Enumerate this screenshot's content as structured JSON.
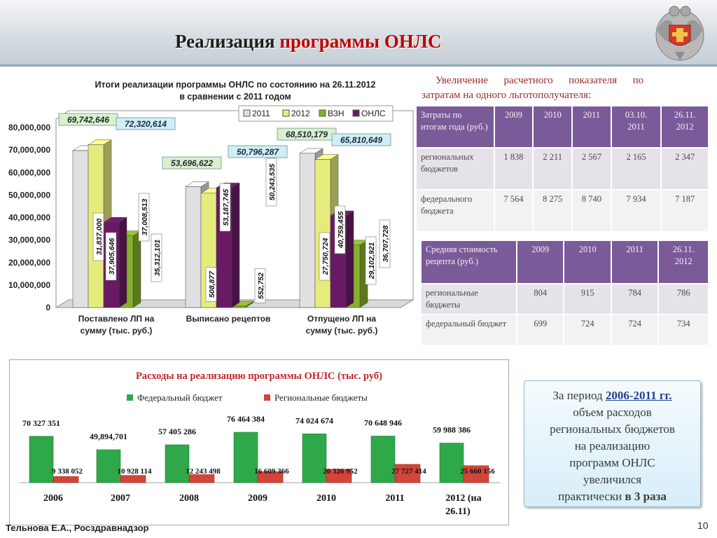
{
  "header": {
    "title_part1": "Реализация",
    "title_part2": "программы ОНЛС"
  },
  "chart1": {
    "title_line1": "Итоги реализации программы ОНЛС по состоянию на  26.11.2012",
    "title_line2": "в сравнении с 2011 годом",
    "legend": [
      "2011",
      "2012",
      "ВЗН",
      "ОНЛС"
    ],
    "colors": [
      "#e0e0e0",
      "#e6ec7c",
      "#86b12c",
      "#6a1a64"
    ],
    "yticks": [
      "80,000,000",
      "70,000,000",
      "60,000,000",
      "50,000,000",
      "40,000,000",
      "30,000,000",
      "20,000,000",
      "10,000,000",
      "0"
    ],
    "categories": [
      "Поставлено ЛП на",
      "сумму (тыс. руб.)",
      "Выписано рецептов",
      "Отпущено ЛП на",
      "сумму (тыс. руб.)"
    ],
    "callouts": [
      "69,742,646",
      "72,320,614",
      "53,696,622",
      "50,796,287",
      "68,510,179",
      "65,810,649"
    ],
    "vlabels": [
      "31,837,000",
      "37,905,646",
      "37,008,513",
      "35,312,101",
      "508,877",
      "53,187,745",
      "552,752",
      "50,243,535",
      "27,750,724",
      "40,759,455",
      "29,102,921",
      "36,707,728"
    ]
  },
  "chart_data": [
    {
      "type": "bar",
      "title": "Итоги реализации программы ОНЛС по состоянию на  26.11.2012 в сравнении с 2011 годом",
      "categories": [
        "Поставлено ЛП на сумму (тыс. руб.)",
        "Выписано рецептов",
        "Отпущено ЛП на сумму (тыс. руб.)"
      ],
      "ylim": [
        0,
        80000000
      ],
      "legend_position": "top-right",
      "series": [
        {
          "name": "2011",
          "values": [
            69742646,
            53696622,
            68510179
          ]
        },
        {
          "name": "2012",
          "values": [
            72320614,
            50796287,
            65810649
          ]
        },
        {
          "name": "ВЗН",
          "values": [
            31837000,
            508877,
            27750724
          ]
        },
        {
          "name": "ОНЛС",
          "values": [
            37905646,
            53187745,
            40759455
          ]
        }
      ],
      "extra_labels": [
        {
          "category": "Поставлено ЛП на сумму (тыс. руб.)",
          "values": [
            37008513,
            35312101
          ]
        },
        {
          "category": "Выписано рецептов",
          "values": [
            552752,
            50243535
          ]
        },
        {
          "category": "Отпущено ЛП на сумму (тыс. руб.)",
          "values": [
            29102921,
            36707728
          ]
        }
      ]
    },
    {
      "type": "bar",
      "title": "Расходы на реализацию программы ОНЛС (тыс. руб)",
      "categories": [
        "2006",
        "2007",
        "2008",
        "2009",
        "2010",
        "2011",
        "2012 (на 26.11)"
      ],
      "legend_position": "top",
      "series": [
        {
          "name": "Федеральный бюджет",
          "values": [
            70327351,
            49894701,
            57405286,
            76464384,
            74024674,
            70648946,
            59988386
          ]
        },
        {
          "name": "Региональные бюджеты",
          "values": [
            9338052,
            10928114,
            12243498,
            16609366,
            20326952,
            27727414,
            25660156
          ]
        }
      ]
    }
  ],
  "right": {
    "text_line1": "Увеличение      расчетного      показателя      по",
    "text_line2": "затратам на одного льготополучателя",
    "text_colon": ":",
    "table1": {
      "headers": [
        "Затраты по итогам года (руб.)",
        "2009",
        "2010",
        "2011",
        "03.10. 2011",
        "26.11. 2012"
      ],
      "rows": [
        [
          "региональных бюджетов",
          "1 838",
          "2 211",
          "2 567",
          "2 165",
          "2 347"
        ],
        [
          "федерального бюджета",
          "7 564",
          "8 275",
          "8 740",
          "7 934",
          "7 187"
        ]
      ]
    },
    "table2": {
      "headers": [
        "Средняя стоимость рецепта (руб.)",
        "2009",
        "2010",
        "2011",
        "26.11. 2012"
      ],
      "rows": [
        [
          "региональные бюджеты",
          "804",
          "915",
          "784",
          "786"
        ],
        [
          "федеральный бюджет",
          "699",
          "724",
          "724",
          "734"
        ]
      ]
    }
  },
  "chart2": {
    "title": "Расходы на реализацию программы ОНЛС (тыс. руб)",
    "legend_fed": "Федеральный бюджет",
    "legend_reg": "Региональные бюджеты",
    "fed_color": "#2fa84a",
    "reg_color": "#d2453a",
    "fed_labels": [
      "70 327 351",
      "49,894,701",
      "57 405 286",
      "76 464 384",
      "74 024 674",
      "70 648 946",
      "59 988 386"
    ],
    "reg_labels": [
      "9 338 052",
      "10 928 114",
      "12 243 498",
      "16 609 366",
      "20 326 952",
      "27 727 414",
      "25 660 156"
    ],
    "years": [
      "2006",
      "2007",
      "2008",
      "2009",
      "2010",
      "2011",
      "2012 (на",
      "26.11)"
    ]
  },
  "note": {
    "line1_pre": "За период ",
    "line1_link": "2006-2011 гг.",
    "line2": "объем расходов",
    "line3": "региональных бюджетов",
    "line4": "на реализацию",
    "line5": "программ ОНЛС",
    "line6": "увеличился",
    "line7_pre": "практически ",
    "line7_bold": "в 3 раза"
  },
  "footer": {
    "author": "Тельнова Е.А., Росздравнадзор",
    "page": "10"
  }
}
